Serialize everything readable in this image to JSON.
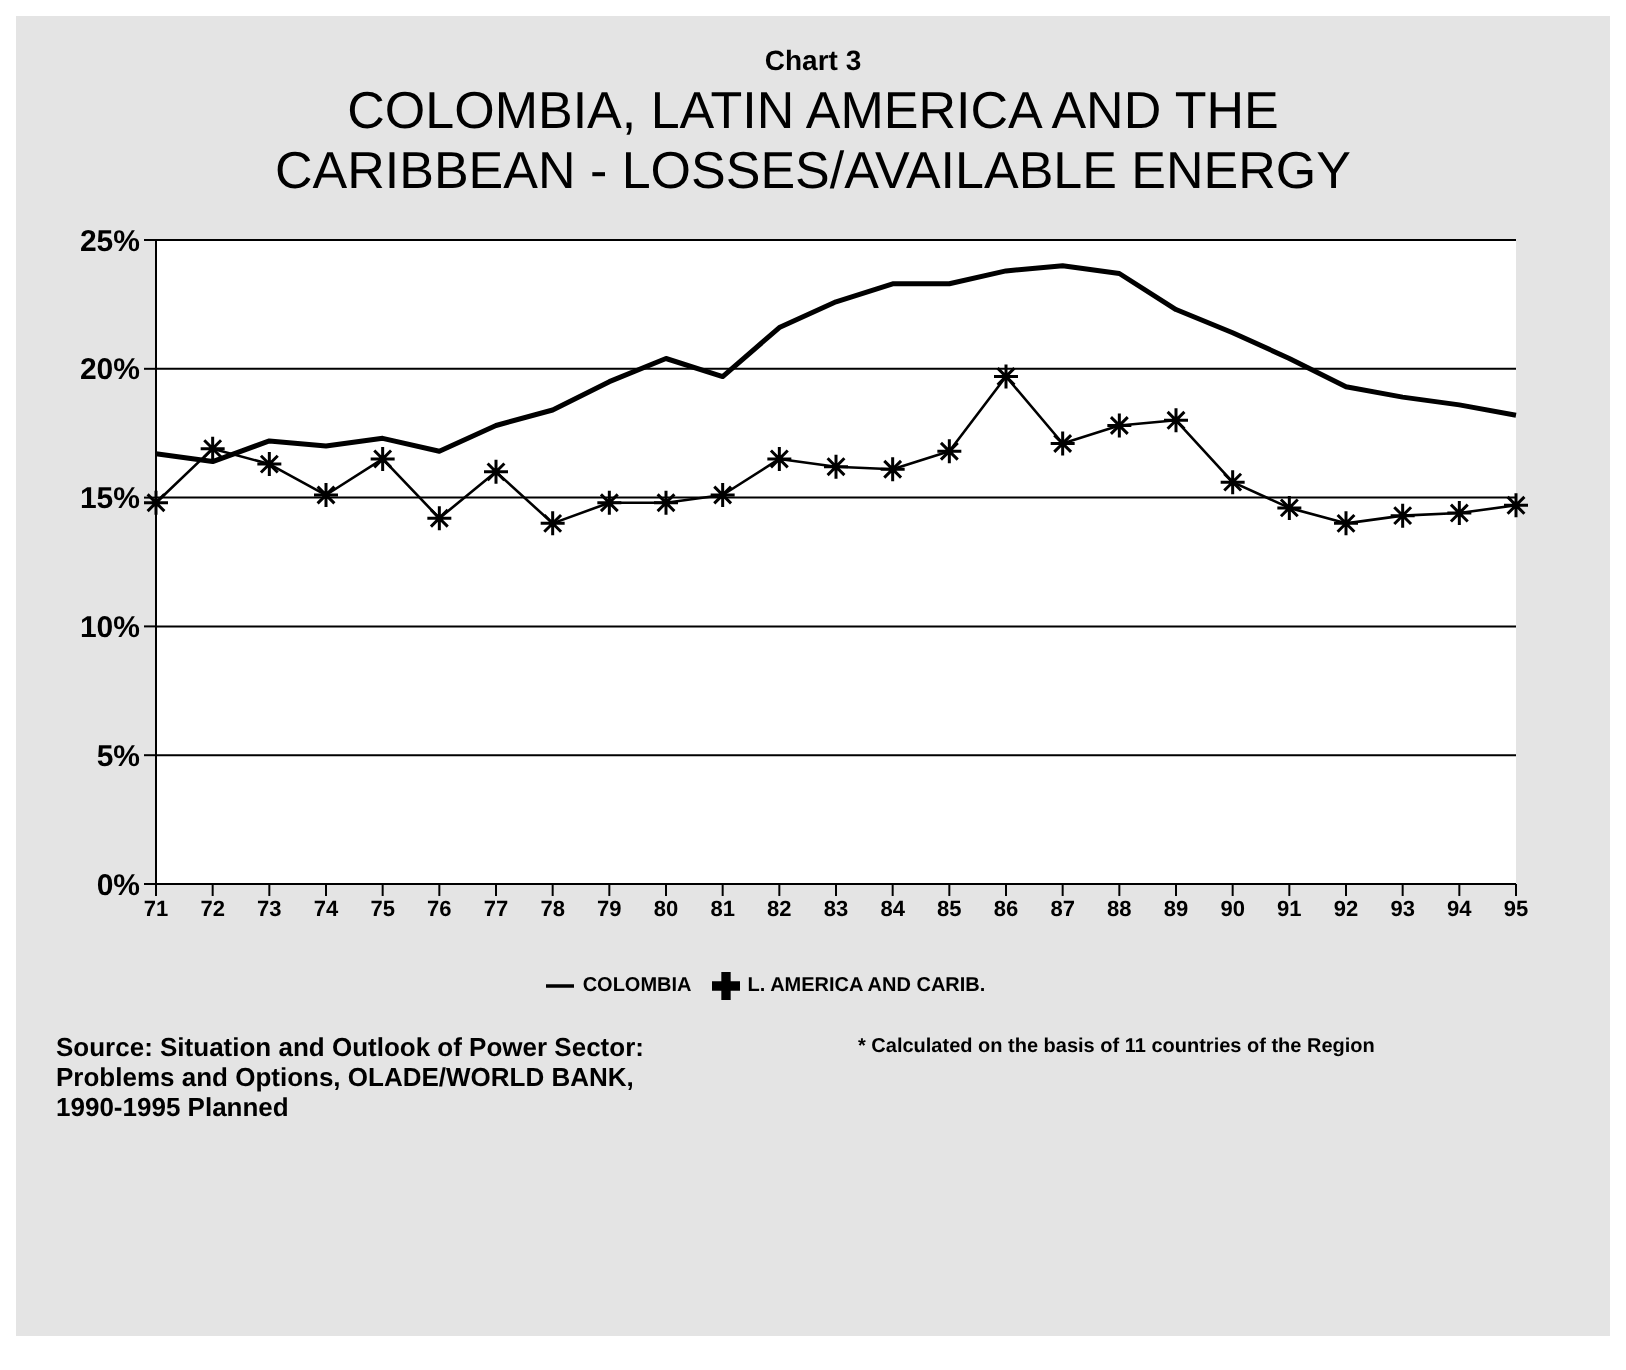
{
  "chart_data": {
    "type": "line",
    "subtitle": "Chart 3",
    "title": "COLOMBIA, LATIN AMERICA AND THE CARIBBEAN - LOSSES/AVAILABLE ENERGY",
    "categories": [
      "71",
      "72",
      "73",
      "74",
      "75",
      "76",
      "77",
      "78",
      "79",
      "80",
      "81",
      "82",
      "83",
      "84",
      "85",
      "86",
      "87",
      "88",
      "89",
      "90",
      "91",
      "92",
      "93",
      "94",
      "95"
    ],
    "series": [
      {
        "name": "COLOMBIA",
        "color": "#000000",
        "marker": "none",
        "values": [
          16.7,
          16.4,
          17.2,
          17.0,
          17.3,
          16.8,
          17.8,
          18.4,
          19.5,
          20.4,
          19.7,
          21.6,
          22.6,
          23.3,
          23.3,
          23.8,
          24.0,
          23.7,
          22.3,
          21.4,
          20.4,
          19.3,
          18.9,
          18.6,
          18.2
        ]
      },
      {
        "name": "L. AMERICA AND CARIB.",
        "color": "#000000",
        "marker": "cross",
        "values": [
          14.8,
          16.9,
          16.3,
          15.1,
          16.5,
          14.2,
          16.0,
          14.0,
          14.8,
          14.8,
          15.1,
          16.5,
          16.2,
          16.1,
          16.8,
          19.7,
          17.1,
          17.8,
          18.0,
          15.6,
          14.6,
          14.0,
          14.3,
          14.4,
          14.7
        ]
      }
    ],
    "ylim": [
      0,
      25
    ],
    "yticks": [
      {
        "value": 0,
        "label": "0%"
      },
      {
        "value": 5,
        "label": "5%"
      },
      {
        "value": 10,
        "label": "10%"
      },
      {
        "value": 15,
        "label": "15%"
      },
      {
        "value": 20,
        "label": "20%"
      },
      {
        "value": 25,
        "label": "25%"
      }
    ],
    "grid": "y",
    "legend": "bottom",
    "line_style": "solid",
    "annotations": [
      "Source: Situation and Outlook of Power Sector: Problems and Options, OLADE/WORLD BANK, 1990-1995 Planned",
      "* Calculated on the basis of 11 countries of the Region"
    ]
  }
}
